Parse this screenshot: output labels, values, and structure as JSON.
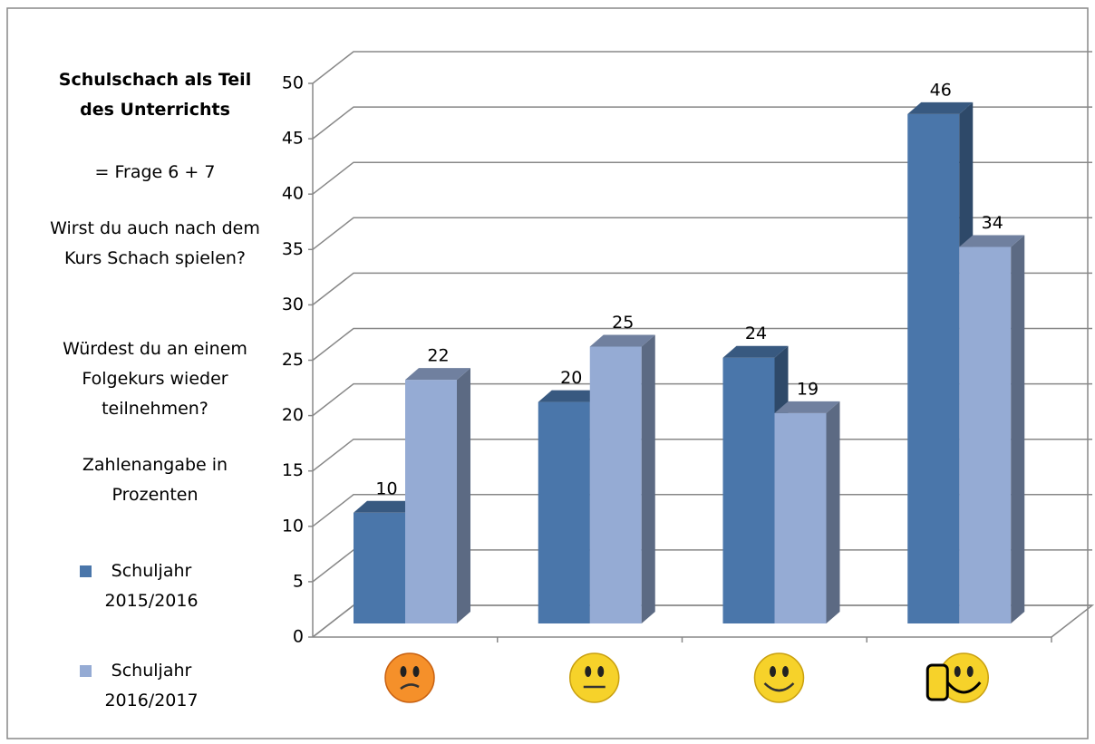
{
  "chart_data": {
    "type": "bar3d",
    "title": "Schulschach als Teil des Unterrichts",
    "annotations": [
      "= Frage 6 + 7",
      "Wirst du auch nach dem Kurs Schach spielen?",
      "Würdest du an einem Folgekurs wieder teilnehmen?",
      "Zahlenangabe in Prozenten"
    ],
    "categories": [
      null,
      null,
      null,
      null
    ],
    "series": [
      {
        "name": "Schuljahr 2015/2016",
        "color": "#4a76aa",
        "values": [
          10,
          20,
          24,
          46
        ]
      },
      {
        "name": "Schuljahr 2016/2017",
        "color": "#95abd4",
        "values": [
          22,
          25,
          19,
          34
        ]
      }
    ],
    "ylim": [
      0,
      50
    ],
    "yticks": [
      0,
      5,
      10,
      15,
      20,
      25,
      30,
      35,
      40,
      45,
      50
    ],
    "grid": true,
    "legend": "left"
  }
}
